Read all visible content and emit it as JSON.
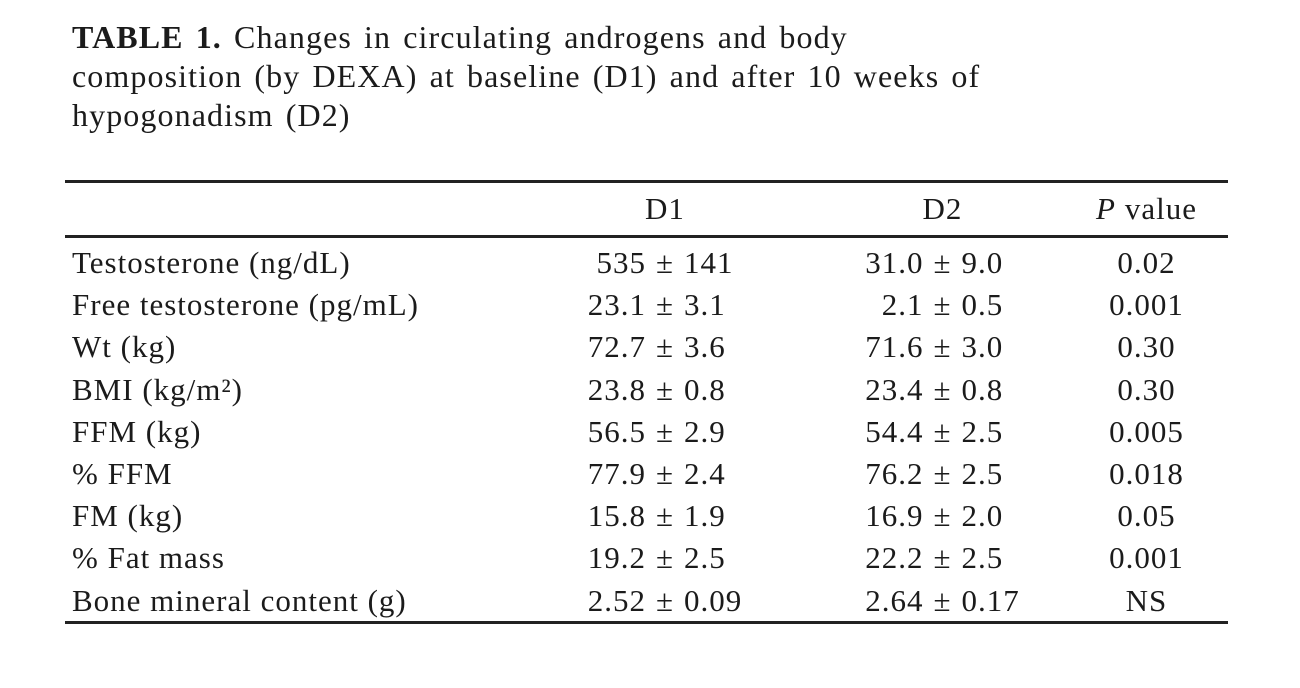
{
  "title": {
    "label": "TABLE 1.",
    "line1": "Changes in circulating androgens and body",
    "line2": "composition (by DEXA) at baseline (D1) and after 10 weeks of",
    "line3": "hypogonadism (D2)"
  },
  "table": {
    "plus_minus": "±",
    "header": {
      "d1": "D1",
      "d2": "D2",
      "p_symbol": "P",
      "p_rest": "value"
    },
    "rows": [
      {
        "label": "Testosterone (ng/dL)",
        "d1m": "535",
        "d1s": "141",
        "d2m": "31.0",
        "d2s": "9.0",
        "p": "0.02"
      },
      {
        "label": "Free testosterone (pg/mL)",
        "d1m": "23.1",
        "d1s": "3.1",
        "d2m": "2.1",
        "d2s": "0.5",
        "p": "0.001"
      },
      {
        "label": "Wt (kg)",
        "d1m": "72.7",
        "d1s": "3.6",
        "d2m": "71.6",
        "d2s": "3.0",
        "p": "0.30"
      },
      {
        "label": "BMI (kg/m²)",
        "d1m": "23.8",
        "d1s": "0.8",
        "d2m": "23.4",
        "d2s": "0.8",
        "p": "0.30"
      },
      {
        "label": "FFM (kg)",
        "d1m": "56.5",
        "d1s": "2.9",
        "d2m": "54.4",
        "d2s": "2.5",
        "p": "0.005"
      },
      {
        "label": "% FFM",
        "d1m": "77.9",
        "d1s": "2.4",
        "d2m": "76.2",
        "d2s": "2.5",
        "p": "0.018"
      },
      {
        "label": "FM (kg)",
        "d1m": "15.8",
        "d1s": "1.9",
        "d2m": "16.9",
        "d2s": "2.0",
        "p": "0.05"
      },
      {
        "label": "% Fat mass",
        "d1m": "19.2",
        "d1s": "2.5",
        "d2m": "22.2",
        "d2s": "2.5",
        "p": "0.001"
      },
      {
        "label": "Bone mineral content (g)",
        "d1m": "2.52",
        "d1s": "0.09",
        "d2m": "2.64",
        "d2s": "0.17",
        "p": "NS"
      }
    ]
  },
  "chart_data": {
    "type": "table",
    "title": "TABLE 1. Changes in circulating androgens and body composition (by DEXA) at baseline (D1) and after 10 weeks of hypogonadism (D2)",
    "columns": [
      "",
      "D1",
      "D2",
      "P value"
    ],
    "rows": [
      [
        "Testosterone (ng/dL)",
        "535 ± 141",
        "31.0 ± 9.0",
        "0.02"
      ],
      [
        "Free testosterone (pg/mL)",
        "23.1 ± 3.1",
        "2.1 ± 0.5",
        "0.001"
      ],
      [
        "Wt (kg)",
        "72.7 ± 3.6",
        "71.6 ± 3.0",
        "0.30"
      ],
      [
        "BMI (kg/m²)",
        "23.8 ± 0.8",
        "23.4 ± 0.8",
        "0.30"
      ],
      [
        "FFM (kg)",
        "56.5 ± 2.9",
        "54.4 ± 2.5",
        "0.005"
      ],
      [
        "% FFM",
        "77.9 ± 2.4",
        "76.2 ± 2.5",
        "0.018"
      ],
      [
        "FM (kg)",
        "15.8 ± 1.9",
        "16.9 ± 2.0",
        "0.05"
      ],
      [
        "% Fat mass",
        "19.2 ± 2.5",
        "22.2 ± 2.5",
        "0.001"
      ],
      [
        "Bone mineral content (g)",
        "2.52 ± 0.09",
        "2.64 ± 0.17",
        "NS"
      ]
    ]
  }
}
